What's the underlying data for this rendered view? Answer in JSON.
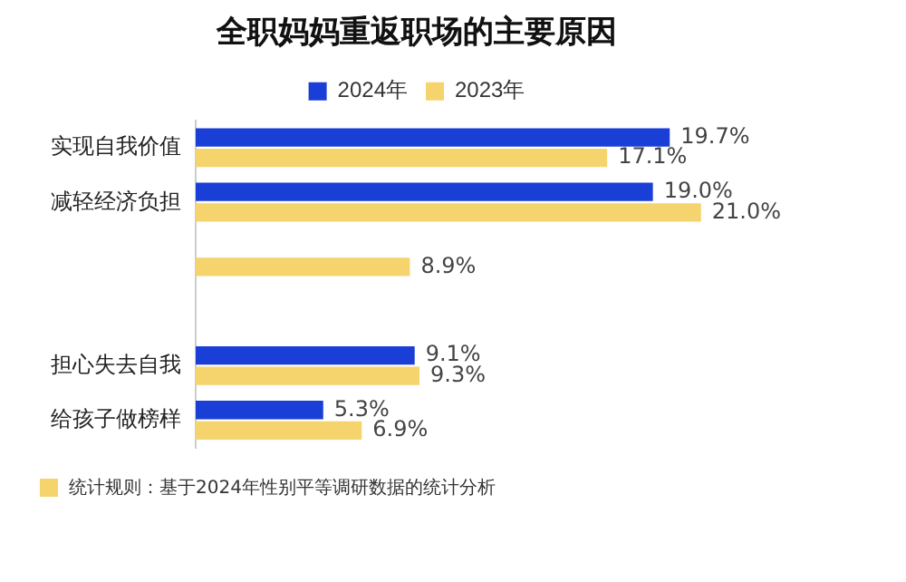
{
  "chart_data": {
    "type": "bar",
    "orientation": "horizontal",
    "title": "全职妈妈重返职场的主要原因",
    "categories": [
      "实现自我价值",
      "减轻经济负担",
      null,
      null,
      "担心失去自我",
      "给孩子做榜样"
    ],
    "series": [
      {
        "name": "2024年",
        "color": "#1a3fd6",
        "values": [
          19.7,
          19.0,
          null,
          null,
          9.1,
          5.3
        ],
        "value_labels": [
          "19.7%",
          "19.0%",
          null,
          null,
          "9.1%",
          "5.3%"
        ]
      },
      {
        "name": "2023年",
        "color": "#f5d46e",
        "values": [
          17.1,
          21.0,
          8.9,
          null,
          9.3,
          6.9
        ],
        "value_labels": [
          "17.1%",
          "21.0%",
          "8.9%",
          null,
          "9.3%",
          "6.9%"
        ]
      }
    ],
    "legend": "top",
    "tick_labels": "y",
    "annotations": [
      "统计规则：基于2024年性别平等调研数据的统计分析"
    ]
  }
}
